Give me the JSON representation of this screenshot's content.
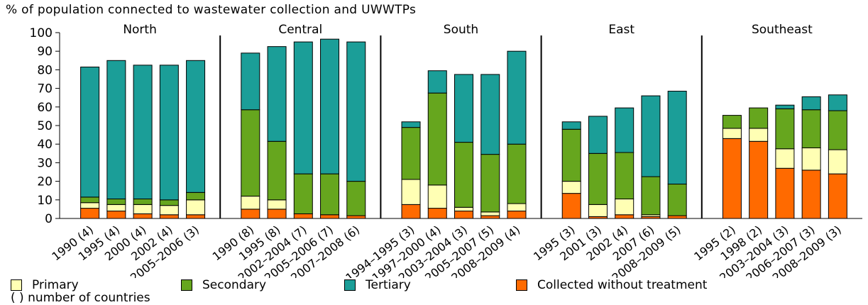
{
  "chart_data": {
    "type": "bar",
    "stacked": true,
    "ylabel": "% of population connected to wastewater collection and UWWTPs",
    "ylim": [
      0,
      100
    ],
    "yticks": [
      0,
      10,
      20,
      30,
      40,
      50,
      60,
      70,
      80,
      90,
      100
    ],
    "series": [
      {
        "name": "Collected without treatment",
        "key": "cwt",
        "color": "#ff6a00"
      },
      {
        "name": "Primary",
        "key": "primary",
        "color": "#ffffb4"
      },
      {
        "name": "Secondary",
        "key": "secondary",
        "color": "#66a61e"
      },
      {
        "name": "Tertiary",
        "key": "tertiary",
        "color": "#1b9e98"
      }
    ],
    "groups": [
      {
        "name": "North",
        "bars": [
          {
            "label": "1990 (4)",
            "cwt": 5.5,
            "primary": 3,
            "secondary": 3,
            "tertiary": 70
          },
          {
            "label": "1995 (4)",
            "cwt": 4,
            "primary": 3.5,
            "secondary": 3,
            "tertiary": 74.5
          },
          {
            "label": "2000 (4)",
            "cwt": 2.5,
            "primary": 5,
            "secondary": 3,
            "tertiary": 72
          },
          {
            "label": "2002 (4)",
            "cwt": 2,
            "primary": 5,
            "secondary": 3,
            "tertiary": 72.5
          },
          {
            "label": "2005–2006 (3)",
            "cwt": 2,
            "primary": 8,
            "secondary": 4,
            "tertiary": 71
          }
        ]
      },
      {
        "name": "Central",
        "bars": [
          {
            "label": "1990 (8)",
            "cwt": 5,
            "primary": 7,
            "secondary": 46.5,
            "tertiary": 30.5
          },
          {
            "label": "1995 (8)",
            "cwt": 5,
            "primary": 5,
            "secondary": 31.5,
            "tertiary": 51
          },
          {
            "label": "2002–2004 (7)",
            "cwt": 2.5,
            "primary": 0,
            "secondary": 21.5,
            "tertiary": 71
          },
          {
            "label": "2005–2006 (7)",
            "cwt": 2,
            "primary": 0,
            "secondary": 22,
            "tertiary": 72.5
          },
          {
            "label": "2007–2008 (6)",
            "cwt": 1.5,
            "primary": 0,
            "secondary": 18.5,
            "tertiary": 75
          }
        ]
      },
      {
        "name": "South",
        "bars": [
          {
            "label": "1994–1995 (3)",
            "cwt": 7.5,
            "primary": 13.5,
            "secondary": 28,
            "tertiary": 3
          },
          {
            "label": "1997–2000 (4)",
            "cwt": 5.5,
            "primary": 12.5,
            "secondary": 49.5,
            "tertiary": 12
          },
          {
            "label": "2003–2004 (3)",
            "cwt": 4,
            "primary": 2,
            "secondary": 35,
            "tertiary": 36.5
          },
          {
            "label": "2005–2007 (5)",
            "cwt": 1.5,
            "primary": 2,
            "secondary": 31,
            "tertiary": 43
          },
          {
            "label": "2008–2009 (4)",
            "cwt": 4,
            "primary": 4,
            "secondary": 32,
            "tertiary": 50
          }
        ]
      },
      {
        "name": "East",
        "bars": [
          {
            "label": "1995 (3)",
            "cwt": 13.5,
            "primary": 6.5,
            "secondary": 28,
            "tertiary": 4
          },
          {
            "label": "2001 (3)",
            "cwt": 1,
            "primary": 6.5,
            "secondary": 27.5,
            "tertiary": 20
          },
          {
            "label": "2002 (4)",
            "cwt": 2,
            "primary": 8.5,
            "secondary": 25,
            "tertiary": 24
          },
          {
            "label": "2007 (6)",
            "cwt": 1,
            "primary": 1,
            "secondary": 20.5,
            "tertiary": 43.5
          },
          {
            "label": "2008–2009 (5)",
            "cwt": 1.5,
            "primary": 0,
            "secondary": 17,
            "tertiary": 50
          }
        ]
      },
      {
        "name": "Southeast",
        "bars": [
          {
            "label": "1995 (2)",
            "cwt": 43,
            "primary": 5.5,
            "secondary": 7,
            "tertiary": 0
          },
          {
            "label": "1998 (2)",
            "cwt": 41.5,
            "primary": 7,
            "secondary": 11,
            "tertiary": 0
          },
          {
            "label": "2003–2004 (3)",
            "cwt": 27,
            "primary": 10.5,
            "secondary": 21.5,
            "tertiary": 2
          },
          {
            "label": "2006–2007 (3)",
            "cwt": 26,
            "primary": 12,
            "secondary": 20.5,
            "tertiary": 7
          },
          {
            "label": "2008–2009 (3)",
            "cwt": 24,
            "primary": 13,
            "secondary": 21,
            "tertiary": 8.5
          }
        ]
      }
    ],
    "legend_order": [
      "Primary",
      "Secondary",
      "Tertiary",
      "Collected without treatment"
    ],
    "note": "( ) number of countries",
    "legend_position": "bottom",
    "grid": false
  }
}
